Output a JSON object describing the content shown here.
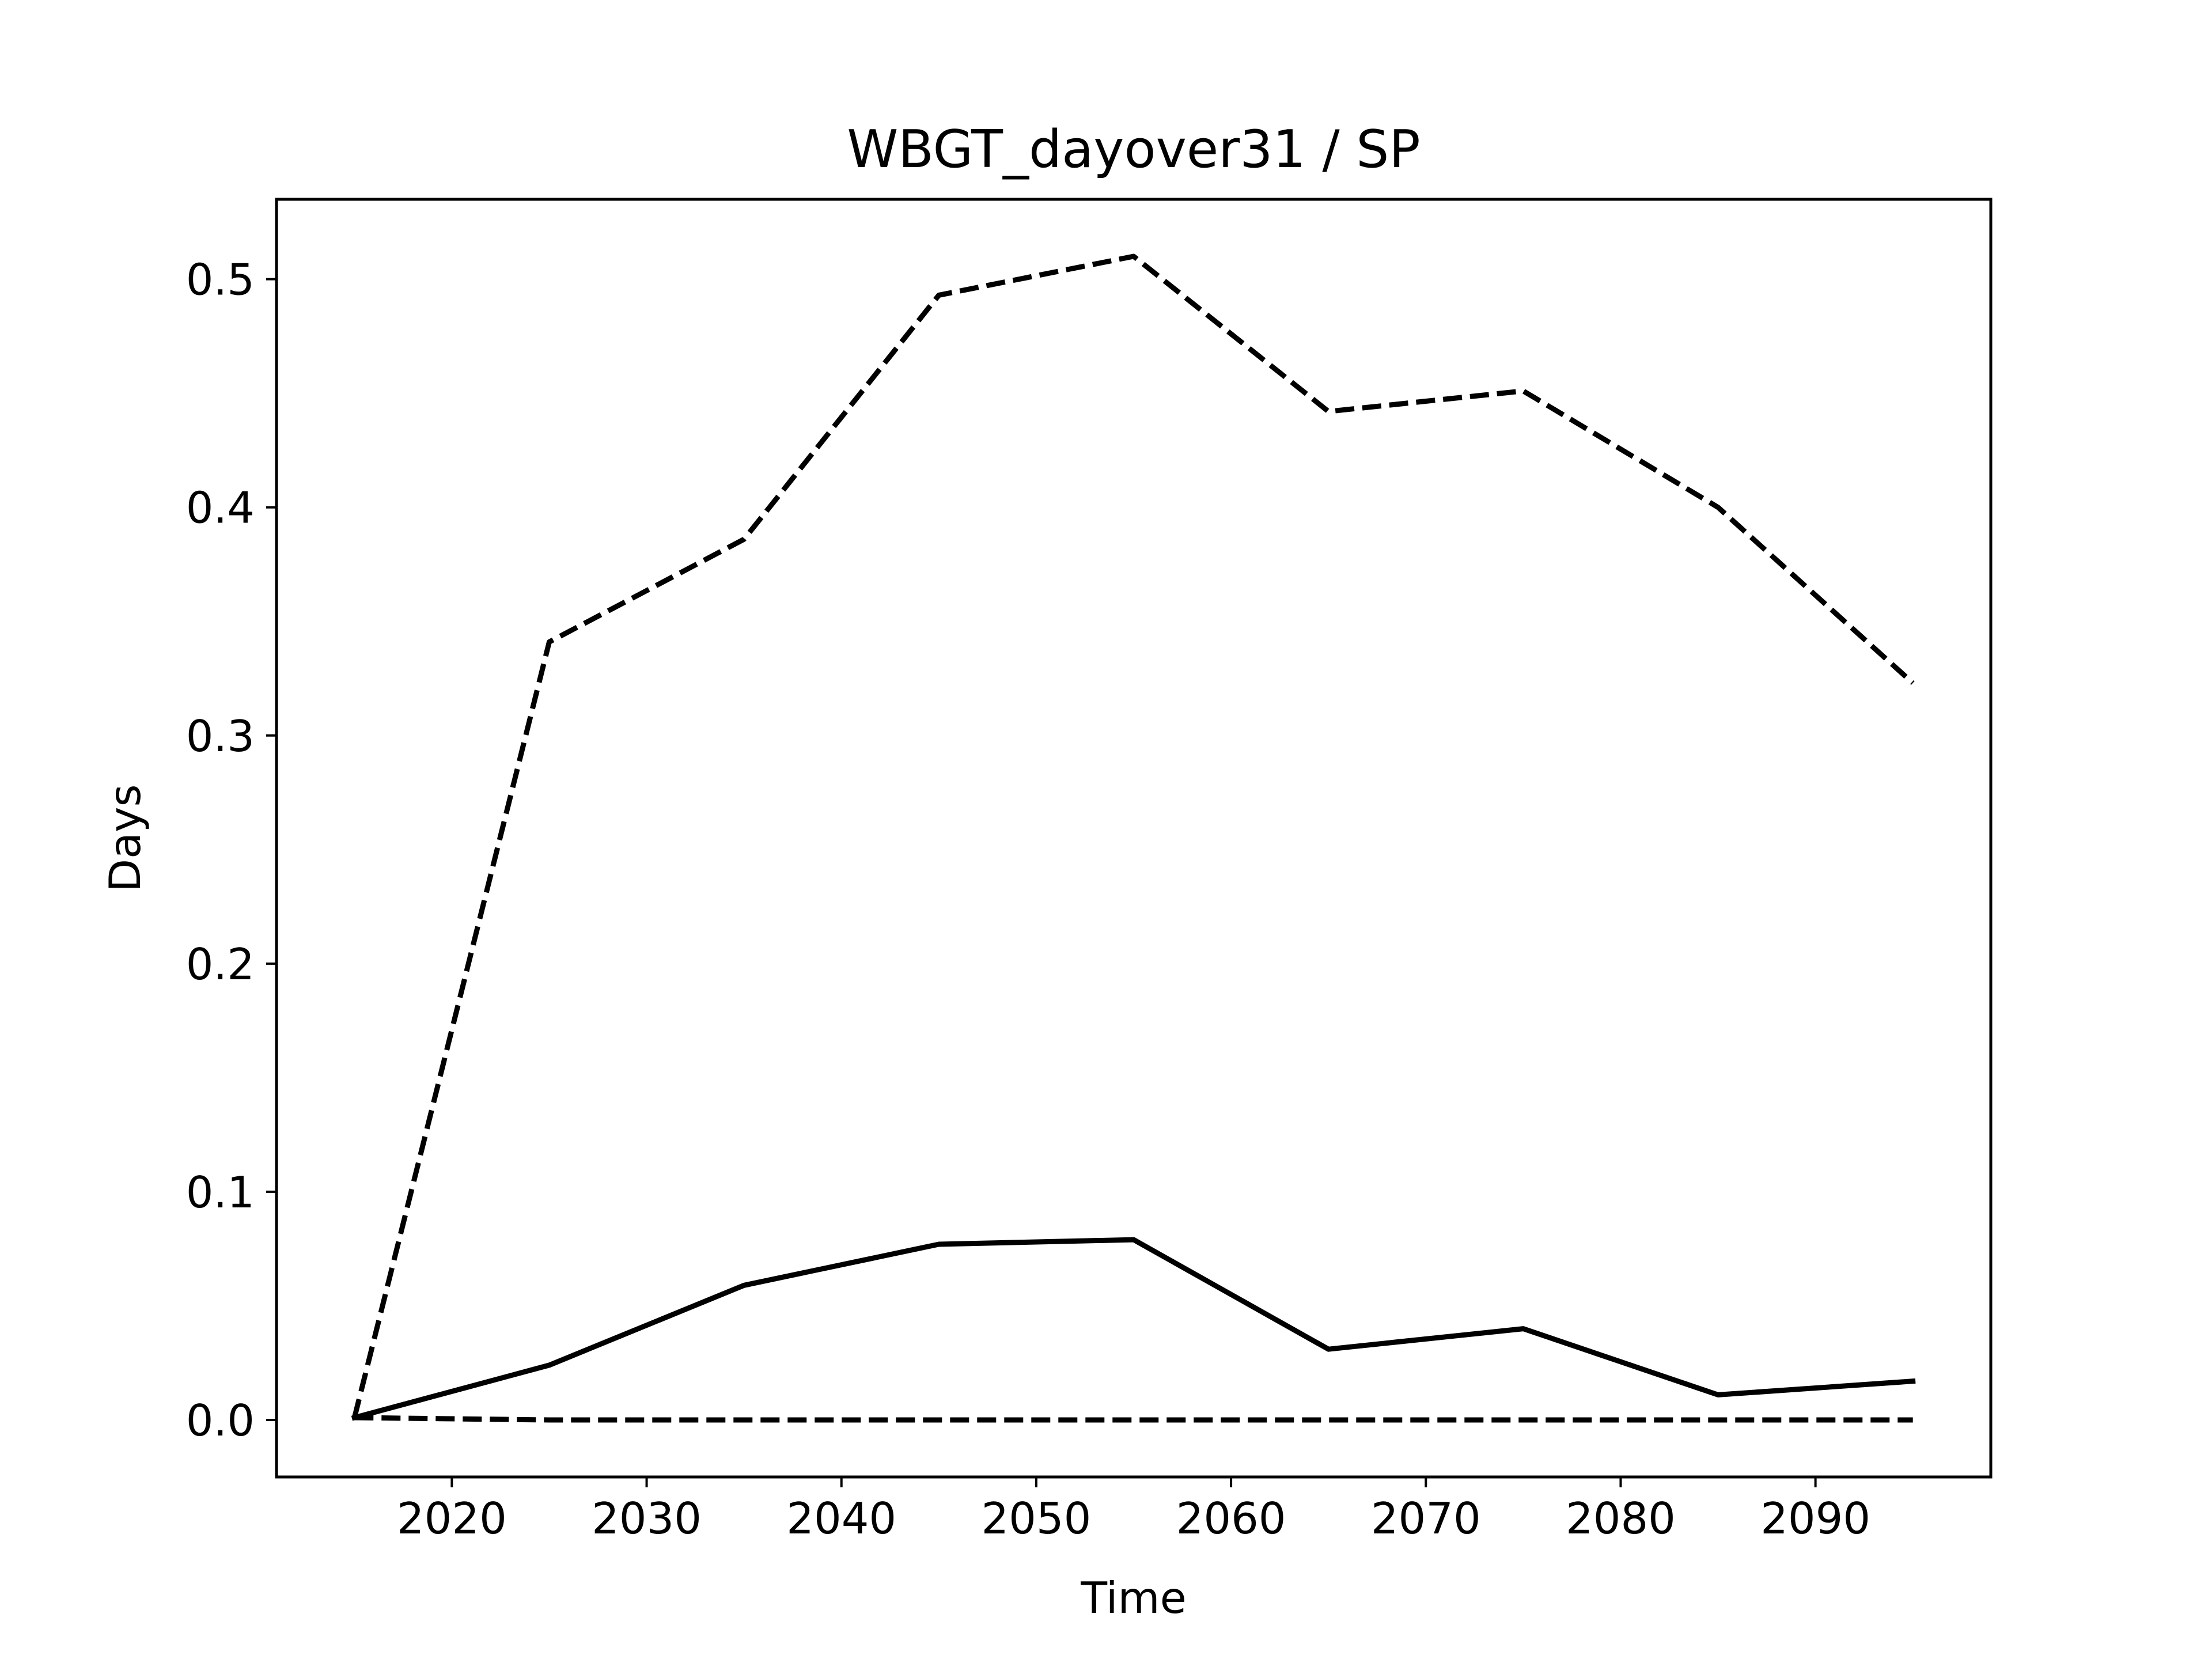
{
  "chart_data": {
    "type": "line",
    "title": "WBGT_dayover31 / SP",
    "xlabel": "Time",
    "ylabel": "Days",
    "xlim": [
      2011,
      2099
    ],
    "ylim": [
      -0.025,
      0.535
    ],
    "xticks": [
      2020,
      2030,
      2040,
      2050,
      2060,
      2070,
      2080,
      2090
    ],
    "xtick_labels": [
      "2020",
      "2030",
      "2040",
      "2050",
      "2060",
      "2070",
      "2080",
      "2090"
    ],
    "yticks": [
      0.0,
      0.1,
      0.2,
      0.3,
      0.4,
      0.5
    ],
    "ytick_labels": [
      "0.0",
      "0.1",
      "0.2",
      "0.3",
      "0.4",
      "0.5"
    ],
    "grid": false,
    "legend": "none",
    "x": [
      2015,
      2025,
      2035,
      2045,
      2055,
      2065,
      2075,
      2085,
      2095
    ],
    "series": [
      {
        "style": "solid",
        "color": "#000000",
        "values": [
          0.001,
          0.024,
          0.059,
          0.077,
          0.079,
          0.031,
          0.04,
          0.011,
          0.017
        ]
      },
      {
        "style": "dashed",
        "color": "#000000",
        "values": [
          0.001,
          0.341,
          0.386,
          0.493,
          0.51,
          0.442,
          0.451,
          0.4,
          0.323
        ]
      },
      {
        "style": "dashed",
        "color": "#000000",
        "values": [
          0.001,
          0.0,
          0.0,
          0.0,
          0.0,
          0.0,
          0.0,
          0.0,
          0.0
        ]
      }
    ]
  }
}
